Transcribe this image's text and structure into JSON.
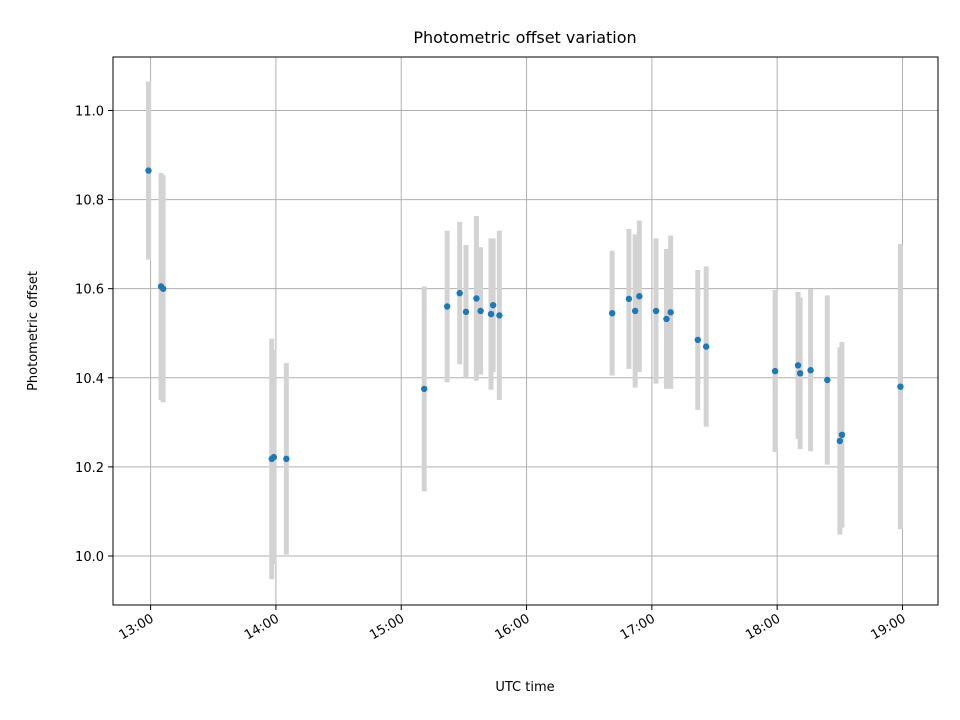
{
  "chart_data": {
    "type": "scatter",
    "title": "Photometric offset variation",
    "xlabel": "UTC time",
    "ylabel": "Photometric offset",
    "x_ticks": [
      "13:00",
      "14:00",
      "15:00",
      "16:00",
      "17:00",
      "18:00",
      "19:00"
    ],
    "y_ticks": [
      "10.0",
      "10.2",
      "10.4",
      "10.6",
      "10.8",
      "11.0"
    ],
    "xlim": [
      "12:42",
      "19:17"
    ],
    "ylim": [
      9.89,
      11.12
    ],
    "grid": true,
    "colors": {
      "points": "#1f77b4",
      "errorbars": "#d3d3d3",
      "grid": "#b0b0b0"
    },
    "series": [
      {
        "points": [
          {
            "x": "12:59",
            "y": 10.865,
            "yerr": 0.2
          },
          {
            "x": "13:05",
            "y": 10.605,
            "yerr": 0.255
          },
          {
            "x": "13:06",
            "y": 10.6,
            "yerr": 0.255
          },
          {
            "x": "13:58",
            "y": 10.218,
            "yerr": 0.27
          },
          {
            "x": "13:59",
            "y": 10.222,
            "yerr": 0.24
          },
          {
            "x": "14:05",
            "y": 10.218,
            "yerr": 0.215
          },
          {
            "x": "15:11",
            "y": 10.375,
            "yerr": 0.23
          },
          {
            "x": "15:22",
            "y": 10.56,
            "yerr": 0.17
          },
          {
            "x": "15:28",
            "y": 10.59,
            "yerr": 0.16
          },
          {
            "x": "15:31",
            "y": 10.548,
            "yerr": 0.15
          },
          {
            "x": "15:36",
            "y": 10.578,
            "yerr": 0.185
          },
          {
            "x": "15:38",
            "y": 10.55,
            "yerr": 0.143
          },
          {
            "x": "15:43",
            "y": 10.543,
            "yerr": 0.17
          },
          {
            "x": "15:44",
            "y": 10.563,
            "yerr": 0.15
          },
          {
            "x": "15:47",
            "y": 10.54,
            "yerr": 0.19
          },
          {
            "x": "16:41",
            "y": 10.545,
            "yerr": 0.14
          },
          {
            "x": "16:49",
            "y": 10.577,
            "yerr": 0.157
          },
          {
            "x": "16:52",
            "y": 10.55,
            "yerr": 0.172
          },
          {
            "x": "16:54",
            "y": 10.583,
            "yerr": 0.17
          },
          {
            "x": "17:02",
            "y": 10.55,
            "yerr": 0.163
          },
          {
            "x": "17:07",
            "y": 10.532,
            "yerr": 0.157
          },
          {
            "x": "17:09",
            "y": 10.547,
            "yerr": 0.172
          },
          {
            "x": "17:22",
            "y": 10.485,
            "yerr": 0.157
          },
          {
            "x": "17:26",
            "y": 10.47,
            "yerr": 0.18
          },
          {
            "x": "17:59",
            "y": 10.415,
            "yerr": 0.182
          },
          {
            "x": "18:10",
            "y": 10.428,
            "yerr": 0.165
          },
          {
            "x": "18:11",
            "y": 10.41,
            "yerr": 0.17
          },
          {
            "x": "18:16",
            "y": 10.417,
            "yerr": 0.182
          },
          {
            "x": "18:24",
            "y": 10.395,
            "yerr": 0.19
          },
          {
            "x": "18:30",
            "y": 10.258,
            "yerr": 0.21
          },
          {
            "x": "18:31",
            "y": 10.272,
            "yerr": 0.208
          },
          {
            "x": "18:59",
            "y": 10.38,
            "yerr": 0.32
          }
        ]
      }
    ]
  }
}
